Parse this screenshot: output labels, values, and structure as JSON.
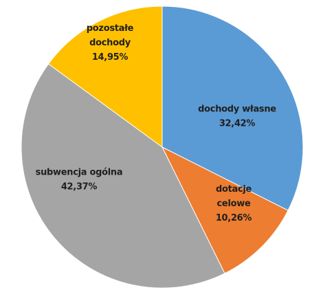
{
  "chart_data": {
    "type": "pie",
    "title": "",
    "slices": [
      {
        "label": "dochody własne",
        "value": 32.42,
        "value_label": "32,42%",
        "color": "#5B9BD5"
      },
      {
        "label": "dotacje celowe",
        "value": 10.26,
        "value_label": "10,26%",
        "color": "#ED7D31"
      },
      {
        "label": "subwencja ogólna",
        "value": 42.37,
        "value_label": "42,37%",
        "color": "#A5A5A5"
      },
      {
        "label": "pozostałe dochody",
        "value": 14.95,
        "value_label": "14,95%",
        "color": "#FFC000"
      }
    ],
    "legend": "none"
  }
}
